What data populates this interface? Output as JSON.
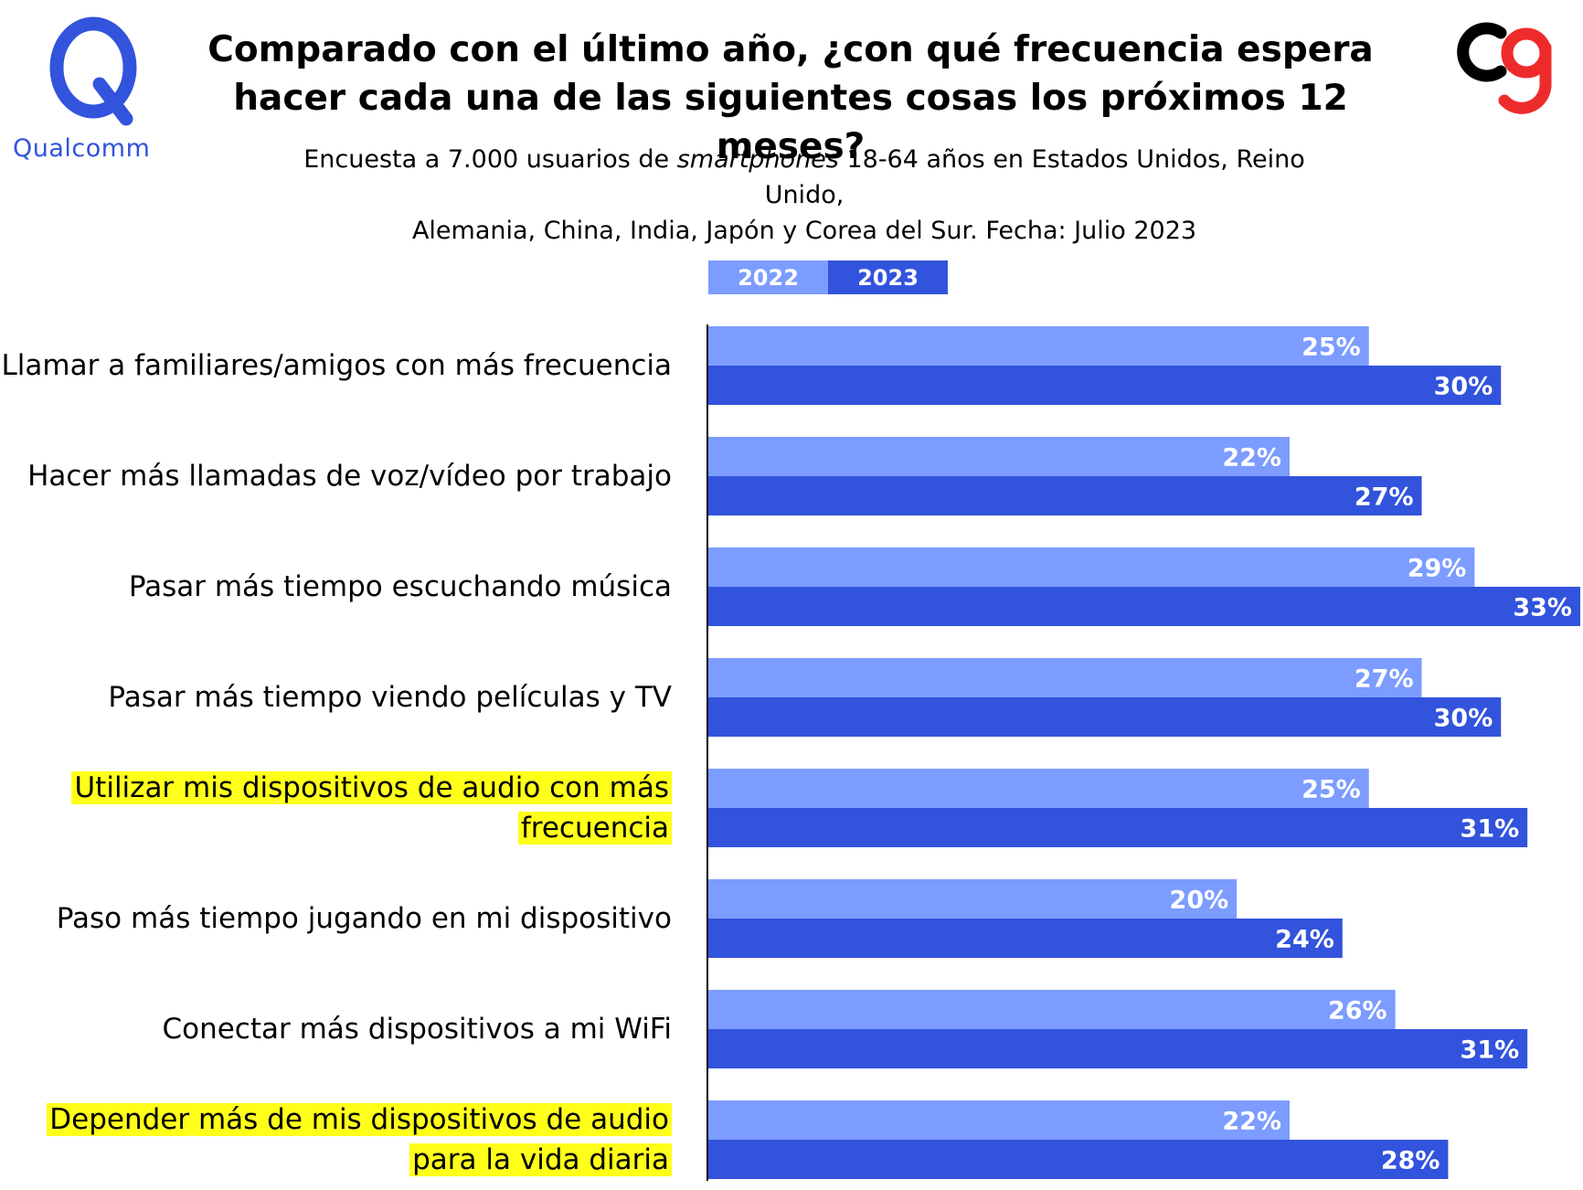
{
  "brand": {
    "qualcomm_label": "Qualcomm"
  },
  "title": {
    "line1": "Comparado con el último año, ¿con qué frecuencia espera",
    "line2": "hacer cada una de las siguientes cosas los próximos 12 meses?"
  },
  "subtitle": {
    "line1_pre": "Encuesta a 7.000 usuarios de ",
    "line1_italic": "smartphones",
    "line1_post": " 18-64 años en Estados Unidos, Reino Unido,",
    "line2": "Alemania, China, India, Japón y Corea del Sur. Fecha: Julio 2023"
  },
  "colors": {
    "series_2022": "#7C9CFF",
    "series_2023": "#3253DC",
    "highlight": "#FFFF1A"
  },
  "chart_data": {
    "type": "bar",
    "orientation": "horizontal",
    "categories": [
      "Llamar a familiares/amigos con más frecuencia",
      "Hacer más llamadas de voz/vídeo por trabajo",
      "Pasar más tiempo escuchando música",
      "Pasar más tiempo viendo películas y TV",
      "Utilizar mis dispositivos de audio con más frecuencia",
      "Paso más tiempo jugando en mi dispositivo",
      "Conectar más dispositivos a mi WiFi",
      "Depender más de mis dispositivos de audio para la vida diaria"
    ],
    "category_lines": [
      [
        "Llamar a familiares/amigos con más frecuencia"
      ],
      [
        "Hacer más llamadas de voz/vídeo por trabajo"
      ],
      [
        "Pasar más tiempo escuchando música"
      ],
      [
        "Pasar más tiempo viendo películas y TV"
      ],
      [
        "Utilizar mis dispositivos de audio con más",
        "frecuencia"
      ],
      [
        "Paso más tiempo jugando en mi dispositivo"
      ],
      [
        "Conectar más dispositivos a mi WiFi"
      ],
      [
        "Depender más de mis dispositivos de audio",
        "para la vida diaria"
      ]
    ],
    "highlighted": [
      false,
      false,
      false,
      false,
      true,
      false,
      false,
      true
    ],
    "series": [
      {
        "name": "2022",
        "values": [
          25,
          22,
          29,
          27,
          25,
          20,
          26,
          22
        ]
      },
      {
        "name": "2023",
        "values": [
          30,
          27,
          33,
          30,
          31,
          24,
          31,
          28
        ]
      }
    ],
    "value_suffix": "%",
    "xlim": [
      0,
      33
    ],
    "legend_position": "top",
    "grid": false
  }
}
